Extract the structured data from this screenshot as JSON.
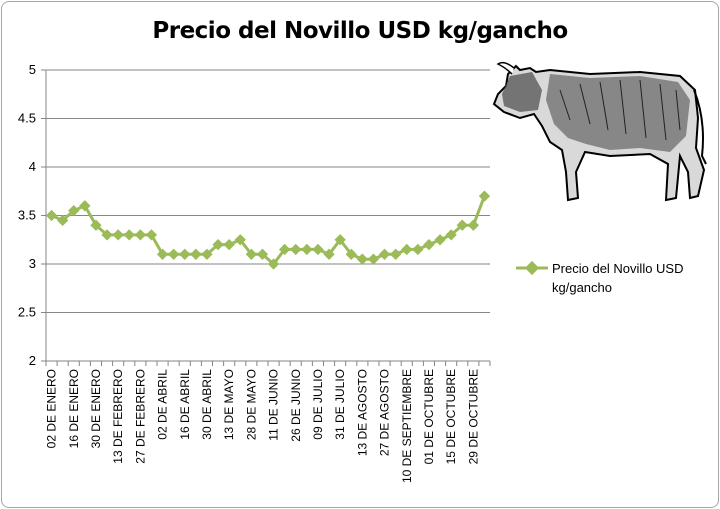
{
  "chart_data": {
    "type": "line",
    "title": "Precio del Novillo USD kg/gancho",
    "xlabel": "",
    "ylabel": "",
    "ylim": [
      2,
      5
    ],
    "yticks": [
      2,
      2.5,
      3,
      3.5,
      4,
      4.5,
      5
    ],
    "ytick_labels": [
      "2",
      "2.5",
      "3",
      "3.5",
      "4",
      "4.5",
      "5"
    ],
    "grid": true,
    "legend_position": "right",
    "x_tick_labels": [
      "02 DE ENERO",
      "16 DE ENERO",
      "30 DE ENERO",
      "13 DE FEBRERO",
      "27 DE FEBRERO",
      "02 DE ABRIL",
      "16 DE ABRIL",
      "30 DE ABRIL",
      "13 DE MAYO",
      "28 DE MAYO",
      "11 DE JUNIO",
      "26 DE JUNIO",
      "09 DE JULIO",
      "31 DE JULIO",
      "13 DE AGOSTO",
      "27 DE AGOSTO",
      "10 DE SEPTIEMBRE",
      "01 DE OCTUBRE",
      "15 DE OCTUBRE",
      "29 DE OCTUBRE"
    ],
    "series": [
      {
        "name": "Precio del Novillo USD kg/gancho",
        "color": "#9bbb59",
        "values": [
          3.5,
          3.45,
          3.55,
          3.6,
          3.4,
          3.3,
          3.3,
          3.3,
          3.3,
          3.3,
          3.1,
          3.1,
          3.1,
          3.1,
          3.1,
          3.2,
          3.2,
          3.25,
          3.1,
          3.1,
          3.0,
          3.15,
          3.15,
          3.15,
          3.15,
          3.1,
          3.25,
          3.1,
          3.05,
          3.05,
          3.1,
          3.1,
          3.15,
          3.15,
          3.2,
          3.25,
          3.3,
          3.4,
          3.4,
          3.7
        ]
      }
    ]
  }
}
